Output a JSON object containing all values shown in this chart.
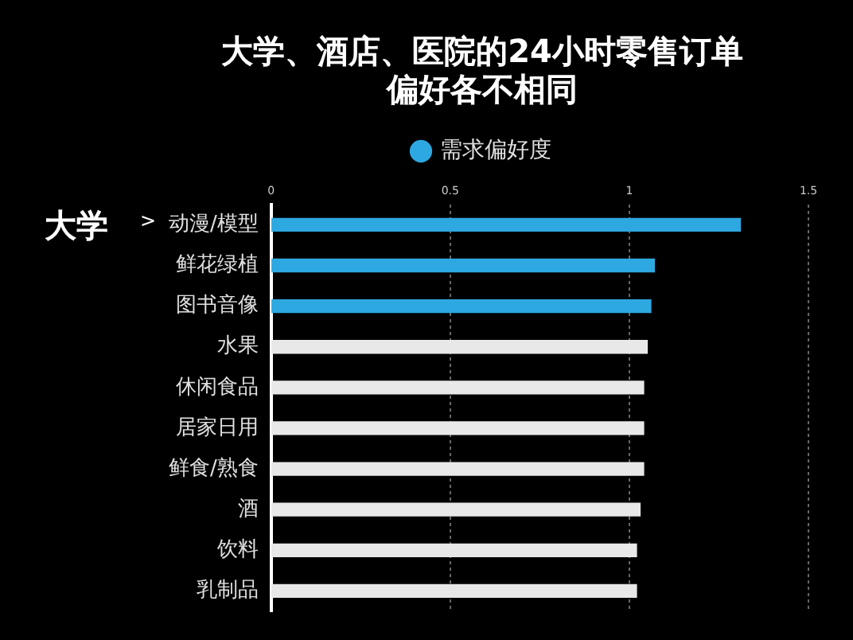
{
  "chart_data": {
    "type": "bar",
    "orientation": "horizontal",
    "title": "大学、酒店、医院的24小时零售订单偏好各不相同",
    "categories": [
      "动漫/模型",
      "鲜花绿植",
      "图书音像",
      "水果",
      "休闲食品",
      "居家日用",
      "鲜食/熟食",
      "酒",
      "饮料",
      "乳制品"
    ],
    "series": [
      {
        "name": "需求偏好度",
        "color": "#2ea8e0",
        "colors": [
          "#2ea8e0",
          "#2ea8e0",
          "#2ea8e0",
          "#e8e8e8",
          "#e8e8e8",
          "#e8e8e8",
          "#e8e8e8",
          "#e8e8e8",
          "#e8e8e8",
          "#e8e8e8"
        ],
        "values": [
          1.31,
          1.07,
          1.06,
          1.05,
          1.04,
          1.04,
          1.04,
          1.03,
          1.02,
          1.02
        ]
      }
    ],
    "xlim": [
      0,
      1.5
    ],
    "xticks": [
      0,
      0.5,
      1,
      1.5
    ],
    "grid": "x",
    "legend": "top",
    "annotations": [
      "大学",
      ">"
    ]
  }
}
